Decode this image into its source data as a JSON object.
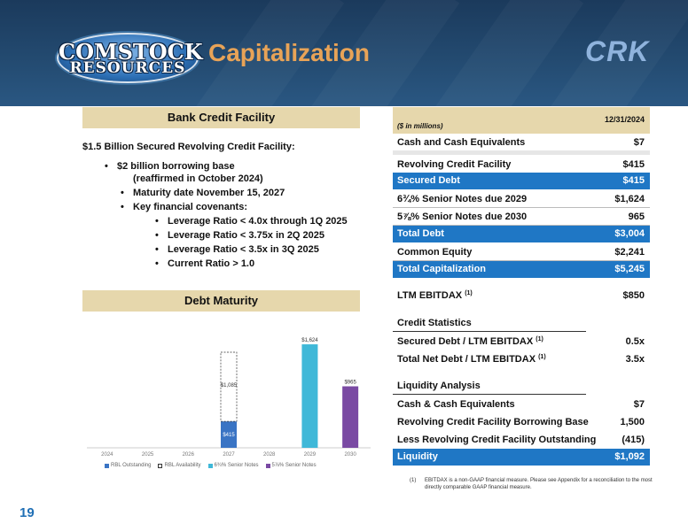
{
  "header": {
    "logo_line1": "COMSTOCK",
    "logo_line2": "RESOURCES",
    "title": "Capitalization",
    "ticker": "CRK"
  },
  "bank_credit_facility": {
    "title": "Bank Credit Facility",
    "heading": "$1.5 Billion Secured Revolving Credit Facility:",
    "bullets": [
      "$2 billion borrowing base",
      "(reaffirmed in October 2024)",
      "Maturity date November 15, 2027",
      "Key financial covenants:"
    ],
    "covenants": [
      "Leverage Ratio < 4.0x through 1Q 2025",
      "Leverage Ratio < 3.75x in 2Q 2025",
      "Leverage Ratio < 3.5x in 3Q 2025",
      "Current Ratio > 1.0"
    ]
  },
  "debt_maturity": {
    "title": "Debt Maturity"
  },
  "chart_data": {
    "type": "bar",
    "categories": [
      "2024",
      "2025",
      "2026",
      "2027",
      "2028",
      "2029",
      "2030"
    ],
    "series": [
      {
        "name": "RBL Outstanding",
        "values": [
          0,
          0,
          0,
          415,
          0,
          0,
          0
        ],
        "color": "#3a74c4"
      },
      {
        "name": "RBL Availability",
        "values": [
          0,
          0,
          0,
          1085,
          0,
          0,
          0
        ],
        "color": "#ffffff"
      },
      {
        "name": "6¾% Senior Notes",
        "values": [
          0,
          0,
          0,
          0,
          0,
          1624,
          0
        ],
        "color": "#3fb8d8"
      },
      {
        "name": "5⅞% Senior Notes",
        "values": [
          0,
          0,
          0,
          0,
          0,
          0,
          965
        ],
        "color": "#7a4aa3"
      }
    ],
    "data_labels": {
      "rbl_outstanding": "$415",
      "rbl_availability": "$1,085",
      "notes_2029": "$1,624",
      "notes_2030": "$965"
    },
    "ylim": [
      0,
      1750
    ],
    "legend": [
      "RBL Outstanding",
      "RBL Availability",
      "6¾% Senior Notes",
      "5⅞% Senior Notes"
    ],
    "legend_position": "bottom"
  },
  "capitalization_table": {
    "units": "($ in millions)",
    "date": "12/31/2024",
    "rows": [
      {
        "label": "Cash and Cash Equivalents",
        "value": "$7"
      },
      {
        "label": "Revolving Credit Facility",
        "value": "$415"
      },
      {
        "label": "Secured Debt",
        "value": "$415"
      },
      {
        "label": "6¾% Senior Notes due 2029",
        "value": "$1,624"
      },
      {
        "label": "5⅞% Senior Notes due 2030",
        "value": "965"
      },
      {
        "label": "Total Debt",
        "value": "$3,004"
      },
      {
        "label": "Common Equity",
        "value": "$2,241"
      },
      {
        "label": "Total Capitalization",
        "value": "$5,245"
      }
    ],
    "ltm_ebitdax": {
      "label": "LTM EBITDAX",
      "sup": "(1)",
      "value": "$850"
    },
    "credit_statistics": {
      "title": "Credit Statistics",
      "rows": [
        {
          "label": "Secured Debt / LTM EBITDAX",
          "sup": "(1)",
          "value": "0.5x"
        },
        {
          "label": "Total Net Debt / LTM EBITDAX",
          "sup": "(1)",
          "value": "3.5x"
        }
      ]
    },
    "liquidity_analysis": {
      "title": "Liquidity Analysis",
      "rows": [
        {
          "label": "Cash & Cash Equivalents",
          "value": "$7"
        },
        {
          "label": "Revolving Credit Facility Borrowing Base",
          "value": "1,500"
        },
        {
          "label": "Less Revolving Credit Facility Outstanding",
          "value": "(415)"
        },
        {
          "label": "Liquidity",
          "value": "$1,092"
        }
      ]
    }
  },
  "footnote": {
    "number": "(1)",
    "text": "EBITDAX is a non-GAAP financial measure. Please see Appendix for a reconciliation to the most directly comparable GAAP financial measure."
  },
  "page_number": "19",
  "colors": {
    "accent_gold": "#e6d7ac",
    "highlight_blue": "#1f77c5",
    "title_orange": "#e8a357",
    "header_navy": "#1b3a5c"
  }
}
